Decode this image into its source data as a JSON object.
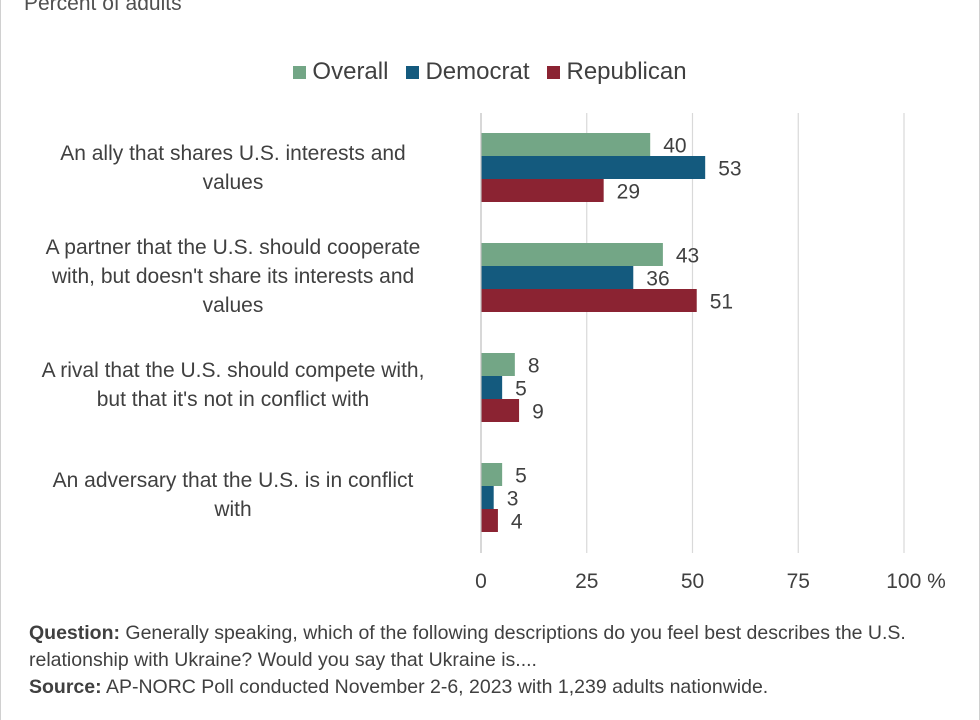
{
  "subtitle": "Percent of adults",
  "legend": [
    {
      "label": "Overall",
      "color": "#73a686"
    },
    {
      "label": "Democrat",
      "color": "#145a7e"
    },
    {
      "label": "Republican",
      "color": "#8b2332"
    }
  ],
  "footnote": {
    "question_label": "Question:",
    "question_text": "Generally speaking, which of the following descriptions do you feel best describes the U.S. relationship with Ukraine? Would you say that Ukraine is....",
    "source_label": "Source:",
    "source_text": "AP-NORC Poll conducted November 2-6, 2023 with 1,239 adults nationwide."
  },
  "chart_data": {
    "type": "bar",
    "orientation": "horizontal",
    "title": "",
    "subtitle": "Percent of adults",
    "categories": [
      [
        "An ally that shares U.S. interests and",
        "values"
      ],
      [
        "A partner that the U.S. should cooperate",
        "with, but doesn't share its interests and",
        "values"
      ],
      [
        "A rival that the U.S. should compete with,",
        "but that it's not in conflict with"
      ],
      [
        "An adversary that the U.S. is in conflict",
        "with"
      ]
    ],
    "series": [
      {
        "name": "Overall",
        "color": "#73a686",
        "values": [
          40,
          43,
          8,
          5
        ]
      },
      {
        "name": "Democrat",
        "color": "#145a7e",
        "values": [
          53,
          36,
          5,
          3
        ]
      },
      {
        "name": "Republican",
        "color": "#8b2332",
        "values": [
          29,
          51,
          9,
          4
        ]
      }
    ],
    "xlim": [
      0,
      100
    ],
    "xticks": [
      0,
      25,
      50,
      75,
      100
    ],
    "xtick_labels": [
      "0",
      "25",
      "50",
      "75",
      "100 %"
    ],
    "grid": true,
    "legend_position": "top"
  }
}
